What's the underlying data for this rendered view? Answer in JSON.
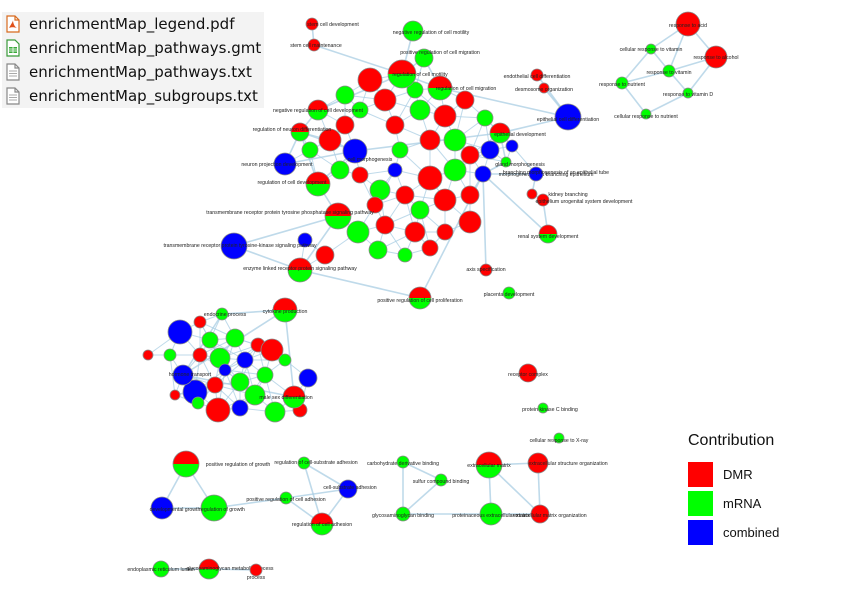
{
  "files": [
    {
      "name": "enrichmentMap_legend.pdf",
      "icon": "pdf-icon"
    },
    {
      "name": "enrichmentMap_pathways.gmt",
      "icon": "spreadsheet-icon"
    },
    {
      "name": "enrichmentMap_pathways.txt",
      "icon": "text-file-icon"
    },
    {
      "name": "enrichmentMap_subgroups.txt",
      "icon": "text-file-icon"
    }
  ],
  "legend": {
    "title": "Contribution",
    "items": [
      {
        "label": "DMR",
        "color": "#ff0000"
      },
      {
        "label": "mRNA",
        "color": "#00ff00"
      },
      {
        "label": "combined",
        "color": "#0000ff"
      }
    ]
  },
  "colors": {
    "DMR": "#ff0000",
    "mRNA": "#00ff00",
    "combined": "#0000ff",
    "edge": "#a9cde3",
    "node_border": "#8a8a8a"
  },
  "nodes": [
    {
      "id": "stem-cell-development",
      "label": "stem cell development",
      "c": [
        "DMR"
      ]
    },
    {
      "id": "stem-cell-maintenance",
      "label": "stem cell maintenance",
      "c": [
        "DMR"
      ]
    },
    {
      "id": "negative-regulation-of-cell-motility",
      "label": "negative regulation of cell motility",
      "c": [
        "mRNA"
      ]
    },
    {
      "id": "positive-regulation-of-cell-migration",
      "label": "positive regulation of cell migration",
      "c": [
        "mRNA"
      ]
    },
    {
      "id": "response-to-acid",
      "label": "response to acid",
      "c": [
        "DMR"
      ]
    },
    {
      "id": "cellular-response-to-vitamin",
      "label": "cellular response to vitamin",
      "c": [
        "mRNA"
      ]
    },
    {
      "id": "response-to-alcohol",
      "label": "response to alcohol",
      "c": [
        "DMR"
      ]
    },
    {
      "id": "response-to-vitamin",
      "label": "response to vitamin",
      "c": [
        "mRNA"
      ]
    },
    {
      "id": "response-to-nutrient",
      "label": "response to nutrient",
      "c": [
        "mRNA"
      ]
    },
    {
      "id": "response-to-vitamin-d",
      "label": "response to vitamin D",
      "c": [
        "mRNA"
      ]
    },
    {
      "id": "cellular-response-to-nutrient",
      "label": "cellular response to nutrient",
      "c": [
        "mRNA"
      ]
    },
    {
      "id": "endothelial-cell-differentiation",
      "label": "endothelial cell differentiation",
      "c": [
        "DMR"
      ]
    },
    {
      "id": "desmosome-organization",
      "label": "desmosome organization",
      "c": [
        "DMR"
      ]
    },
    {
      "id": "epithelial-cell-differentiation",
      "label": "epithelial cell differentiation",
      "c": [
        "combined"
      ]
    },
    {
      "id": "regulation-of-neuron-differentiation",
      "label": "regulation of neuron differentiation",
      "c": [
        "DMR",
        "mRNA"
      ]
    },
    {
      "id": "negative-regulation-of-cell-development",
      "label": "negative regulation of cell development",
      "c": [
        "DMR",
        "mRNA"
      ]
    },
    {
      "id": "regulation-of-cell-motility",
      "label": "regulation of cell motility",
      "c": [
        "DMR",
        "mRNA"
      ]
    },
    {
      "id": "regulation-of-cell-migration",
      "label": "regulation of cell migration",
      "c": [
        "DMR",
        "mRNA"
      ]
    },
    {
      "id": "neuron-projection-development",
      "label": "neuron projection development",
      "c": [
        "combined"
      ]
    },
    {
      "id": "regulation-of-cell-development",
      "label": "regulation of cell development",
      "c": [
        "DMR",
        "mRNA"
      ]
    },
    {
      "id": "cell-morphogenesis",
      "label": "cell morphogenesis",
      "c": [
        "combined"
      ]
    },
    {
      "id": "epithelial-development",
      "label": "epithelial development",
      "c": [
        "DMR",
        "mRNA"
      ]
    },
    {
      "id": "gland-morphogenesis",
      "label": "gland morphogenesis",
      "c": [
        "mRNA"
      ]
    },
    {
      "id": "morphogenesis-of-a-branching-epithelium",
      "label": "morphogenesis of a branching epithelium",
      "c": [
        "combined"
      ]
    },
    {
      "id": "branching-morphogenesis-of-an-epithelial-tube",
      "label": "branching morphogenesis of an epithelial tube",
      "c": [
        "combined"
      ]
    },
    {
      "id": "kidney-branching",
      "label": "kidney branching",
      "c": [
        "DMR"
      ]
    },
    {
      "id": "epithelium-urogenital-system-development",
      "label": "epithelium urogenital system development",
      "c": [
        "DMR"
      ]
    },
    {
      "id": "renal-system-development",
      "label": "renal system development",
      "c": [
        "DMR",
        "mRNA"
      ]
    },
    {
      "id": "transmembrane-receptor-protein-tyrosine-phosphatase-signaling-pathway",
      "label": "transmembrane receptor protein tyrosine phosphatase signaling pathway",
      "c": [
        "DMR",
        "mRNA"
      ]
    },
    {
      "id": "transmembrane-receptor-protein-tyrosine-kinase-signaling-pathway",
      "label": "transmembrane receptor protein tyrosine-kinase signaling pathway",
      "c": [
        "combined"
      ]
    },
    {
      "id": "enzyme-linked-receptor-protein-signaling-pathway",
      "label": "enzyme linked receptor protein signaling pathway",
      "c": [
        "DMR",
        "mRNA"
      ]
    },
    {
      "id": "positive-regulation-of-cell-proliferation",
      "label": "positive regulation of cell proliferation",
      "c": [
        "DMR",
        "mRNA"
      ]
    },
    {
      "id": "axis-specification",
      "label": "axis specification",
      "c": [
        "DMR"
      ]
    },
    {
      "id": "placenta-development",
      "label": "placenta development",
      "c": [
        "mRNA"
      ]
    },
    {
      "id": "cytokine-production",
      "label": "cytokine production",
      "c": [
        "DMR",
        "mRNA"
      ]
    },
    {
      "id": "endocrine-process",
      "label": "endocrine process",
      "c": [
        "mRNA"
      ]
    },
    {
      "id": "hormone-transport",
      "label": "hormone transport",
      "c": [
        "combined"
      ]
    },
    {
      "id": "male-sex-differentiation",
      "label": "male sex differentiation",
      "c": [
        "DMR",
        "mRNA"
      ]
    },
    {
      "id": "receptor-complex",
      "label": "receptor complex",
      "c": [
        "DMR"
      ]
    },
    {
      "id": "protein-kinase-c-binding",
      "label": "protein kinase C binding",
      "c": [
        "mRNA"
      ]
    },
    {
      "id": "cellular-response-to-x-ray",
      "label": "cellular response to X-ray",
      "c": [
        "mRNA"
      ]
    },
    {
      "id": "positive-regulation-of-growth",
      "label": "positive regulation of growth",
      "c": [
        "DMR",
        "mRNA"
      ]
    },
    {
      "id": "regulation-of-cell-substrate-adhesion",
      "label": "regulation of cell-substrate adhesion",
      "c": [
        "mRNA"
      ]
    },
    {
      "id": "carbohydrate-derivative-binding",
      "label": "carbohydrate derivative binding",
      "c": [
        "mRNA"
      ]
    },
    {
      "id": "extracellular-matrix",
      "label": "extracellular matrix",
      "c": [
        "DMR",
        "mRNA"
      ]
    },
    {
      "id": "extracellular-structure-organization",
      "label": "extracellular structure organization",
      "c": [
        "DMR"
      ]
    },
    {
      "id": "cell-substrate-adhesion",
      "label": "cell-substrate adhesion",
      "c": [
        "combined"
      ]
    },
    {
      "id": "sulfur-compound-binding",
      "label": "sulfur compound binding",
      "c": [
        "mRNA"
      ]
    },
    {
      "id": "developmental-growth",
      "label": "developmental growth",
      "c": [
        "combined"
      ]
    },
    {
      "id": "regulation-of-growth",
      "label": "regulation of growth",
      "c": [
        "mRNA"
      ]
    },
    {
      "id": "positive-regulation-of-cell-adhesion",
      "label": "positive regulation of cell adhesion",
      "c": [
        "mRNA"
      ]
    },
    {
      "id": "regulation-of-cell-adhesion",
      "label": "regulation of cell adhesion",
      "c": [
        "DMR",
        "mRNA"
      ]
    },
    {
      "id": "glycosaminoglycan-binding",
      "label": "glycosaminoglycan binding",
      "c": [
        "mRNA"
      ]
    },
    {
      "id": "proteinaceous-extracellular-matrix",
      "label": "proteinaceous extracellular matrix",
      "c": [
        "mRNA"
      ]
    },
    {
      "id": "extracellular-matrix-organization",
      "label": "extracellular matrix organization",
      "c": [
        "DMR"
      ]
    },
    {
      "id": "endoplasmic-reticulum-lumen",
      "label": "endoplasmic reticulum lumen",
      "c": [
        "mRNA"
      ]
    },
    {
      "id": "glycosaminoglycan-metabolic-process",
      "label": "glycosaminoglycan metabolic process",
      "c": [
        "DMR",
        "mRNA"
      ]
    },
    {
      "id": "lipid-process",
      "label": "process",
      "c": [
        "DMR"
      ]
    }
  ]
}
